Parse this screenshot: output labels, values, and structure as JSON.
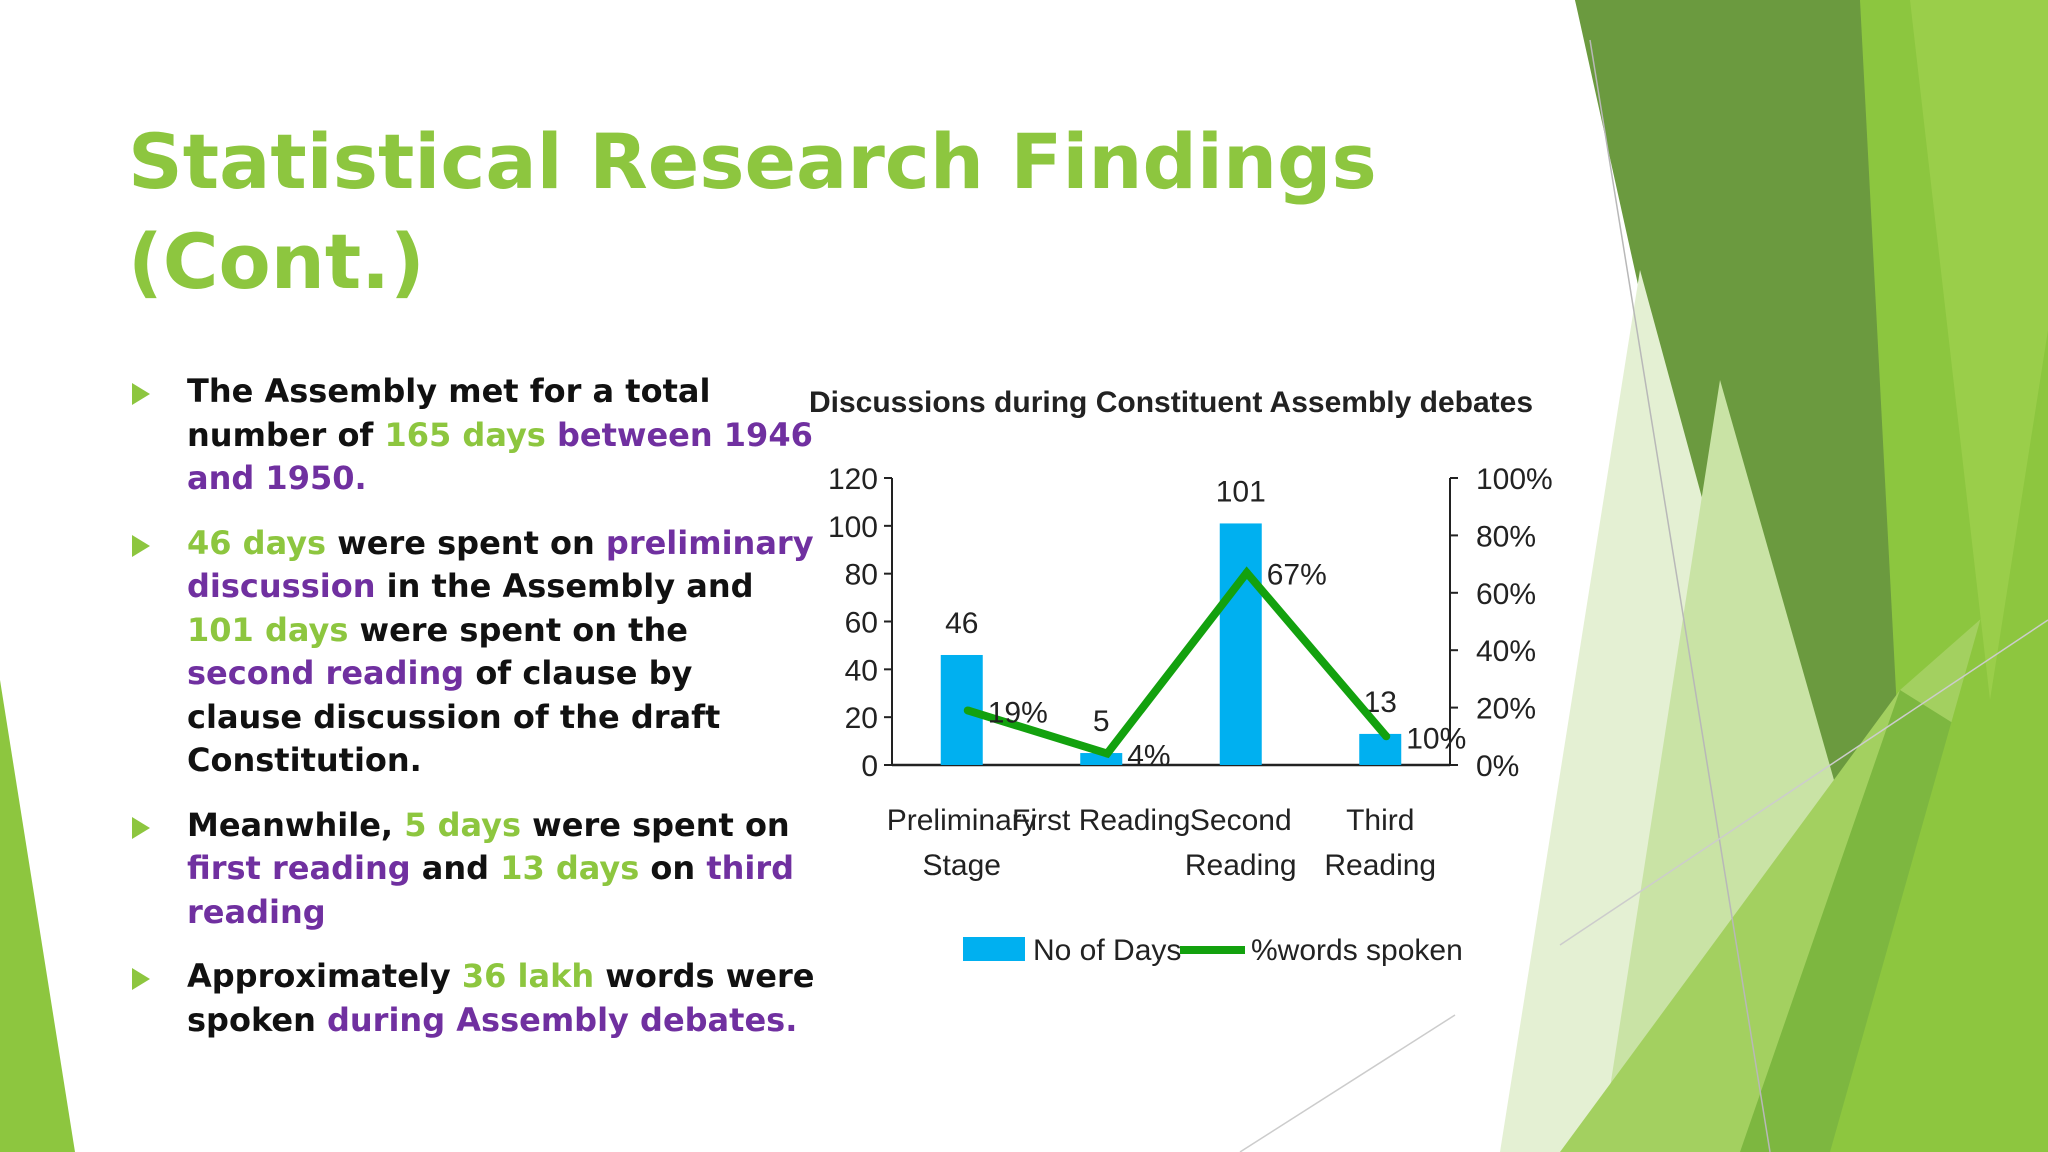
{
  "slide": {
    "title_line1": "Statistical Research Findings",
    "title_line2": "(Cont.)",
    "bullets": [
      [
        {
          "t": "The Assembly met for a total number of ",
          "c": "k"
        },
        {
          "t": "165 days ",
          "c": "g"
        },
        {
          "t": "between 1946 and 1950.",
          "c": "p"
        }
      ],
      [
        {
          "t": " 46 days ",
          "c": "g"
        },
        {
          "t": "were spent on ",
          "c": "k"
        },
        {
          "t": "preliminary discussion ",
          "c": "p"
        },
        {
          "t": "in the Assembly and ",
          "c": "k"
        },
        {
          "t": "101 days ",
          "c": "g"
        },
        {
          "t": "were spent on the ",
          "c": "k"
        },
        {
          "t": "second reading ",
          "c": "p"
        },
        {
          "t": "of clause by clause discussion of the draft Constitution.",
          "c": "k"
        }
      ],
      [
        {
          "t": "Meanwhile, ",
          "c": "k"
        },
        {
          "t": "5 days ",
          "c": "g"
        },
        {
          "t": "were spent on ",
          "c": "k"
        },
        {
          "t": "first reading ",
          "c": "p"
        },
        {
          "t": "and ",
          "c": "k"
        },
        {
          "t": "13 days ",
          "c": "g"
        },
        {
          "t": "on ",
          "c": "k"
        },
        {
          "t": "third reading",
          "c": "p"
        }
      ],
      [
        {
          "t": "Approximately ",
          "c": "k"
        },
        {
          "t": "36 lakh ",
          "c": "g"
        },
        {
          "t": "words were spoken ",
          "c": "k"
        },
        {
          "t": "during Assembly debates.",
          "c": "p"
        }
      ]
    ]
  },
  "chart_data": {
    "type": "bar",
    "title": "Discussions during Constituent Assembly debates",
    "categories": [
      [
        "Preliminary",
        "Stage"
      ],
      [
        "First Reading"
      ],
      [
        "Second",
        "Reading"
      ],
      [
        "Third",
        "Reading"
      ]
    ],
    "series": [
      {
        "name": "No of Days",
        "type": "bar",
        "axis": "left",
        "values": [
          46,
          5,
          101,
          13
        ],
        "labels": [
          "46",
          "5",
          "101",
          "13"
        ],
        "color": "#00b0f0"
      },
      {
        "name": "%words spoken",
        "type": "line",
        "axis": "right",
        "values": [
          19,
          4,
          67,
          10
        ],
        "labels": [
          "19%",
          "4%",
          "67%",
          "10%"
        ],
        "color": "#13a10e"
      }
    ],
    "y_left": {
      "min": 0,
      "max": 120,
      "ticks": [
        "0",
        "20",
        "40",
        "60",
        "80",
        "100",
        "120"
      ]
    },
    "y_right": {
      "min": 0,
      "max": 100,
      "ticks": [
        "0%",
        "20%",
        "40%",
        "60%",
        "80%",
        "100%"
      ]
    },
    "legend_position": "bottom"
  },
  "colors": {
    "accent_green": "#8dc63f",
    "purple": "#7030a0",
    "bar_blue": "#00b0f0",
    "line_green": "#13a10e"
  }
}
